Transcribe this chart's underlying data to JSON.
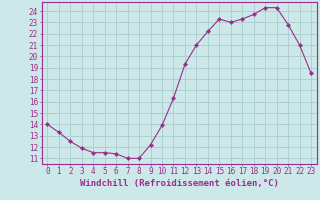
{
  "x": [
    0,
    1,
    2,
    3,
    4,
    5,
    6,
    7,
    8,
    9,
    10,
    11,
    12,
    13,
    14,
    15,
    16,
    17,
    18,
    19,
    20,
    21,
    22,
    23
  ],
  "y": [
    14.0,
    13.3,
    12.5,
    11.9,
    11.5,
    11.5,
    11.4,
    11.0,
    11.0,
    12.2,
    13.9,
    16.3,
    19.3,
    21.0,
    22.2,
    23.3,
    23.0,
    23.3,
    23.7,
    24.3,
    24.3,
    22.8,
    21.0,
    18.5
  ],
  "line_color": "#9b2d8e",
  "marker": "D",
  "marker_size": 2.0,
  "bg_color": "#cce8e8",
  "grid_color": "#aacccc",
  "xlabel": "Windchill (Refroidissement éolien,°C)",
  "ylabel": "",
  "title": "",
  "xlim": [
    -0.5,
    23.5
  ],
  "ylim": [
    10.5,
    24.8
  ],
  "yticks": [
    11,
    12,
    13,
    14,
    15,
    16,
    17,
    18,
    19,
    20,
    21,
    22,
    23,
    24
  ],
  "xticks": [
    0,
    1,
    2,
    3,
    4,
    5,
    6,
    7,
    8,
    9,
    10,
    11,
    12,
    13,
    14,
    15,
    16,
    17,
    18,
    19,
    20,
    21,
    22,
    23
  ],
  "tick_label_fontsize": 5.5,
  "xlabel_fontsize": 6.5,
  "spine_color": "#9b2d8e"
}
